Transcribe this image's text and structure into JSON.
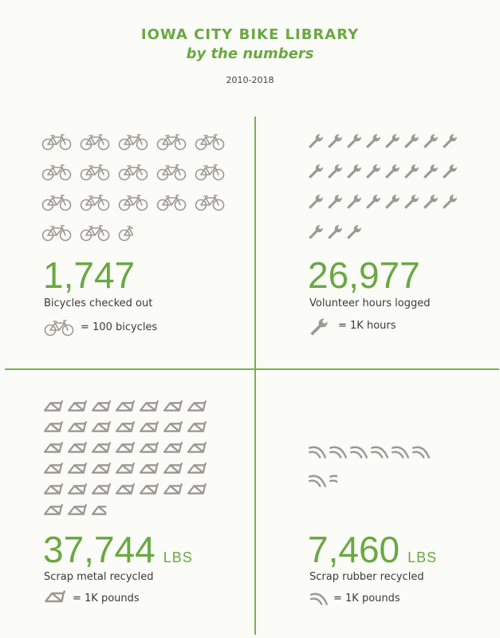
{
  "header": {
    "title": "IOWA CITY BIKE LIBRARY",
    "subtitle": "by the numbers",
    "years": "2010-2018"
  },
  "colors": {
    "accent": "#6aa843",
    "icon": "#9b9a91"
  },
  "panels": [
    {
      "id": "bicycles",
      "icon": "bicycle-icon",
      "value": "1,747",
      "unit": "",
      "label": "Bicycles checked out",
      "legend": "= 100 bicycles",
      "icon_count": 17.47
    },
    {
      "id": "volunteer",
      "icon": "wrench-icon",
      "value": "26,977",
      "unit": "",
      "label": "Volunteer hours logged",
      "legend": "= 1K hours",
      "icon_count": 26.977
    },
    {
      "id": "metal",
      "icon": "bike-frame-icon",
      "value": "37,744",
      "unit": "LBS",
      "label": "Scrap metal recycled",
      "legend": "= 1K pounds",
      "icon_count": 37.744
    },
    {
      "id": "rubber",
      "icon": "tire-icon",
      "value": "7,460",
      "unit": "LBS",
      "label": "Scrap rubber recycled",
      "legend": "= 1K pounds",
      "icon_count": 7.46
    }
  ]
}
